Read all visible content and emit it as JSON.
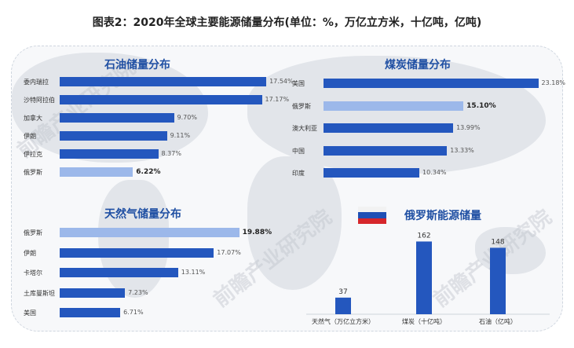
{
  "title": "图表2：2020年全球主要能源储量分布(单位：%，万亿立方米，十亿吨，亿吨)",
  "watermark": "前瞻产业研究院",
  "colors": {
    "bar": "#2457be",
    "highlight": "#9cb8ea",
    "title": "#1f4fa3"
  },
  "chart_data": [
    {
      "type": "bar",
      "orientation": "horizontal",
      "title": "石油储量分布",
      "categories": [
        "委内瑞拉",
        "沙特阿拉伯",
        "加拿大",
        "伊朗",
        "伊拉克",
        "俄罗斯"
      ],
      "values": [
        17.54,
        17.17,
        9.7,
        9.11,
        8.37,
        6.22
      ],
      "value_labels": [
        "17.54%",
        "17.17%",
        "9.70%",
        "9.11%",
        "8.37%",
        "6.22%"
      ],
      "highlight": "俄罗斯"
    },
    {
      "type": "bar",
      "orientation": "horizontal",
      "title": "煤炭储量分布",
      "categories": [
        "美国",
        "俄罗斯",
        "澳大利亚",
        "中国",
        "印度"
      ],
      "values": [
        23.18,
        15.1,
        13.99,
        13.33,
        10.34
      ],
      "value_labels": [
        "23.18%",
        "15.10%",
        "13.99%",
        "13.33%",
        "10.34%"
      ],
      "highlight": "俄罗斯"
    },
    {
      "type": "bar",
      "orientation": "horizontal",
      "title": "天然气储量分布",
      "categories": [
        "俄罗斯",
        "伊朗",
        "卡塔尔",
        "土库曼斯坦",
        "美国"
      ],
      "values": [
        19.88,
        17.07,
        13.11,
        7.23,
        6.71
      ],
      "value_labels": [
        "19.88%",
        "17.07%",
        "13.11%",
        "7.23%",
        "6.71%"
      ],
      "highlight": "俄罗斯"
    },
    {
      "type": "bar",
      "orientation": "vertical",
      "title": "俄罗斯能源储量",
      "categories": [
        "天然气（万亿立方米）",
        "煤炭（十亿吨）",
        "石油（亿吨）"
      ],
      "values": [
        37,
        162,
        148
      ],
      "value_labels": [
        "37",
        "162",
        "148"
      ],
      "ylim": [
        0,
        175
      ]
    }
  ]
}
